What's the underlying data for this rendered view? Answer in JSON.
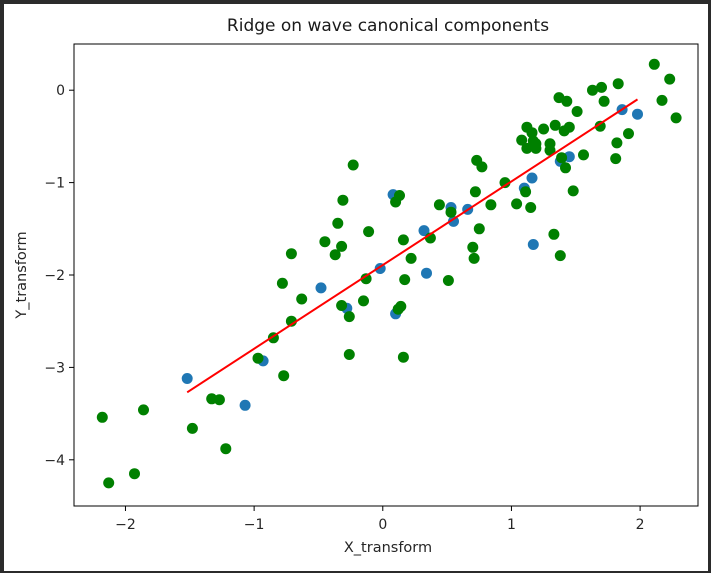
{
  "chart_data": {
    "type": "scatter",
    "title": "Ridge on wave canonical components",
    "xlabel": "X_transform",
    "ylabel": "Y_transform",
    "xlim": [
      -2.4,
      2.45
    ],
    "ylim": [
      -4.5,
      0.5
    ],
    "xticks": [
      -2,
      -1,
      0,
      1,
      2
    ],
    "yticks": [
      0,
      -1,
      -2,
      -3,
      -4
    ],
    "xtick_labels": [
      "−2",
      "−1",
      "0",
      "1",
      "2"
    ],
    "ytick_labels": [
      "0",
      "−1",
      "−2",
      "−3",
      "−4"
    ],
    "grid": false,
    "series": [
      {
        "type": "scatter",
        "color": "#1f77b4",
        "points": [
          [
            -1.52,
            -3.12
          ],
          [
            -1.07,
            -3.41
          ],
          [
            -0.93,
            -2.93
          ],
          [
            -0.48,
            -2.14
          ],
          [
            -0.28,
            -2.36
          ],
          [
            -0.02,
            -1.93
          ],
          [
            0.08,
            -1.13
          ],
          [
            0.1,
            -2.42
          ],
          [
            0.32,
            -1.52
          ],
          [
            0.34,
            -1.98
          ],
          [
            0.53,
            -1.27
          ],
          [
            0.55,
            -1.42
          ],
          [
            0.66,
            -1.29
          ],
          [
            1.1,
            -1.06
          ],
          [
            1.16,
            -0.95
          ],
          [
            1.17,
            -1.67
          ],
          [
            1.38,
            -0.77
          ],
          [
            1.45,
            -0.72
          ],
          [
            1.86,
            -0.21
          ],
          [
            1.98,
            -0.26
          ]
        ]
      },
      {
        "type": "scatter",
        "color": "#008000",
        "points": [
          [
            -2.18,
            -3.54
          ],
          [
            -2.13,
            -4.25
          ],
          [
            -1.93,
            -4.15
          ],
          [
            -1.86,
            -3.46
          ],
          [
            -1.48,
            -3.66
          ],
          [
            -1.33,
            -3.34
          ],
          [
            -1.27,
            -3.35
          ],
          [
            -1.22,
            -3.88
          ],
          [
            -0.97,
            -2.9
          ],
          [
            -0.85,
            -2.68
          ],
          [
            -0.77,
            -3.09
          ],
          [
            -0.78,
            -2.09
          ],
          [
            -0.71,
            -2.5
          ],
          [
            -0.71,
            -1.77
          ],
          [
            -0.63,
            -2.26
          ],
          [
            -0.45,
            -1.64
          ],
          [
            -0.37,
            -1.78
          ],
          [
            -0.35,
            -1.44
          ],
          [
            -0.32,
            -2.33
          ],
          [
            -0.32,
            -1.69
          ],
          [
            -0.31,
            -1.19
          ],
          [
            -0.26,
            -2.45
          ],
          [
            -0.26,
            -2.86
          ],
          [
            -0.23,
            -0.81
          ],
          [
            -0.15,
            -2.28
          ],
          [
            -0.13,
            -2.04
          ],
          [
            -0.11,
            -1.53
          ],
          [
            0.1,
            -1.21
          ],
          [
            0.12,
            -2.37
          ],
          [
            0.13,
            -1.14
          ],
          [
            0.14,
            -2.34
          ],
          [
            0.16,
            -2.89
          ],
          [
            0.16,
            -1.62
          ],
          [
            0.17,
            -2.05
          ],
          [
            0.22,
            -1.82
          ],
          [
            0.37,
            -1.6
          ],
          [
            0.44,
            -1.24
          ],
          [
            0.51,
            -2.06
          ],
          [
            0.53,
            -1.32
          ],
          [
            0.7,
            -1.7
          ],
          [
            0.71,
            -1.82
          ],
          [
            0.72,
            -1.1
          ],
          [
            0.73,
            -0.76
          ],
          [
            0.75,
            -1.5
          ],
          [
            0.77,
            -0.83
          ],
          [
            0.84,
            -1.24
          ],
          [
            0.95,
            -1.0
          ],
          [
            1.04,
            -1.23
          ],
          [
            1.08,
            -0.54
          ],
          [
            1.11,
            -1.1
          ],
          [
            1.12,
            -0.4
          ],
          [
            1.12,
            -0.63
          ],
          [
            1.15,
            -1.27
          ],
          [
            1.16,
            -0.46
          ],
          [
            1.17,
            -0.55
          ],
          [
            1.19,
            -0.63
          ],
          [
            1.19,
            -0.58
          ],
          [
            1.25,
            -0.42
          ],
          [
            1.3,
            -0.65
          ],
          [
            1.3,
            -0.58
          ],
          [
            1.33,
            -1.56
          ],
          [
            1.34,
            -0.38
          ],
          [
            1.37,
            -0.08
          ],
          [
            1.38,
            -1.79
          ],
          [
            1.39,
            -0.73
          ],
          [
            1.41,
            -0.44
          ],
          [
            1.42,
            -0.84
          ],
          [
            1.43,
            -0.12
          ],
          [
            1.45,
            -0.4
          ],
          [
            1.48,
            -1.09
          ],
          [
            1.51,
            -0.23
          ],
          [
            1.56,
            -0.7
          ],
          [
            1.63,
            0.0
          ],
          [
            1.69,
            -0.39
          ],
          [
            1.7,
            0.03
          ],
          [
            1.72,
            -0.12
          ],
          [
            1.81,
            -0.74
          ],
          [
            1.82,
            -0.57
          ],
          [
            1.83,
            0.07
          ],
          [
            1.91,
            -0.47
          ],
          [
            2.11,
            0.28
          ],
          [
            2.17,
            -0.11
          ],
          [
            2.23,
            0.12
          ],
          [
            2.28,
            -0.3
          ]
        ]
      },
      {
        "type": "line",
        "color": "#ff0000",
        "points": [
          [
            -1.52,
            -3.27
          ],
          [
            1.98,
            -0.1
          ]
        ]
      }
    ]
  }
}
